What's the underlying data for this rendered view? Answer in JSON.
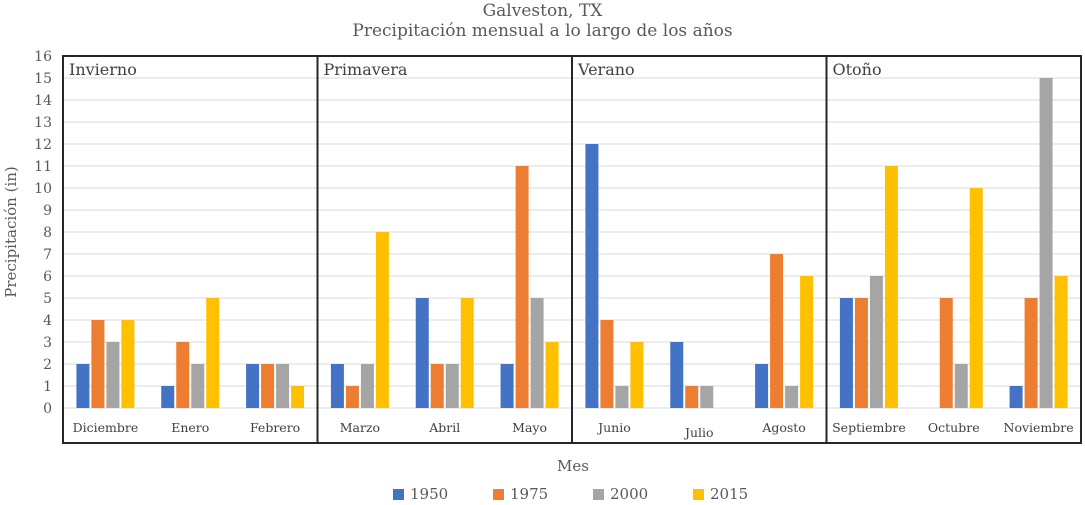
{
  "chart_data": {
    "type": "bar",
    "title": "Galveston, TX",
    "subtitle": "Precipitación mensual a lo largo de los años",
    "xlabel": "Mes",
    "ylabel": "Precipitación (in)",
    "ylim": [
      0,
      16
    ],
    "yticks": [
      "0",
      "1",
      "2",
      "3",
      "4",
      "5",
      "6",
      "7",
      "8",
      "9",
      "10",
      "11",
      "12",
      "13",
      "14",
      "15",
      "16"
    ],
    "grid": true,
    "legend_position": "bottom",
    "groups": [
      {
        "name": "Invierno",
        "categories": [
          "Diciembre",
          "Enero",
          "Febrero"
        ]
      },
      {
        "name": "Primavera",
        "categories": [
          "Marzo",
          "Abril",
          "Mayo"
        ]
      },
      {
        "name": "Verano",
        "categories": [
          "Junio",
          "Julio",
          "Agosto"
        ]
      },
      {
        "name": "Otoño",
        "categories": [
          "Septiembre",
          "Octubre",
          "Noviembre"
        ]
      }
    ],
    "categories": [
      "Diciembre",
      "Enero",
      "Febrero",
      "Marzo",
      "Abril",
      "Mayo",
      "Junio",
      "Julio",
      "Agosto",
      "Septiembre",
      "Octubre",
      "Noviembre"
    ],
    "series": [
      {
        "name": "1950",
        "color": "#4472C4",
        "values": [
          2,
          1,
          2,
          2,
          5,
          2,
          12,
          3,
          2,
          5,
          0,
          1
        ]
      },
      {
        "name": "1975",
        "color": "#ED7D31",
        "values": [
          4,
          3,
          2,
          1,
          2,
          11,
          4,
          1,
          7,
          5,
          5,
          5
        ]
      },
      {
        "name": "2000",
        "color": "#A5A5A5",
        "values": [
          3,
          2,
          2,
          2,
          2,
          5,
          1,
          1,
          1,
          6,
          2,
          15
        ]
      },
      {
        "name": "2015",
        "color": "#FFC000",
        "values": [
          4,
          5,
          1,
          8,
          5,
          3,
          3,
          0,
          6,
          11,
          10,
          6
        ]
      }
    ]
  }
}
